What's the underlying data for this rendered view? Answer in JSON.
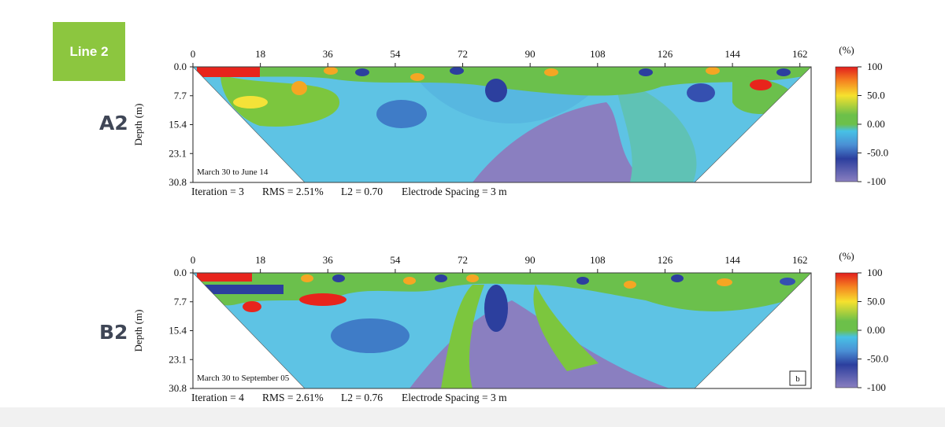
{
  "line_badge": "Line 2",
  "colors": {
    "badge": "#8cc63f",
    "panel_label": "#3f4656"
  },
  "chart_data": [
    {
      "type": "heatmap",
      "panel": "A2",
      "xticks": [
        0,
        18,
        36,
        54,
        72,
        90,
        108,
        126,
        144,
        162
      ],
      "yticks": [
        "0.0",
        "7.7",
        "15.4",
        "23.1",
        "30.8"
      ],
      "xlim": [
        0,
        165
      ],
      "ylim": [
        0,
        30.8
      ],
      "ylabel": "Depth (m)",
      "annotation": "March 30 to June 14",
      "footer": [
        "Iteration = 3",
        "RMS = 2.51%",
        "L2 = 0.70",
        "Electrode Spacing = 3 m"
      ],
      "colorbar": {
        "unit": "(%)",
        "ticks": [
          "100",
          "50.0",
          "0.00",
          "-50.0",
          "-100"
        ],
        "range": [
          -100,
          100
        ]
      }
    },
    {
      "type": "heatmap",
      "panel": "B2",
      "xticks": [
        0,
        18,
        36,
        54,
        72,
        90,
        108,
        126,
        144,
        162
      ],
      "yticks": [
        "0.0",
        "7.7",
        "15.4",
        "23.1",
        "30.8"
      ],
      "xlim": [
        0,
        165
      ],
      "ylim": [
        0,
        30.8
      ],
      "ylabel": "Depth (m)",
      "annotation": "March 30 to September 05",
      "corner_label": "b",
      "footer": [
        "Iteration = 4",
        "RMS = 2.61%",
        "L2 = 0.76",
        "Electrode Spacing = 3 m"
      ],
      "colorbar": {
        "unit": "(%)",
        "ticks": [
          "100",
          "50.0",
          "0.00",
          "-50.0",
          "-100"
        ],
        "range": [
          -100,
          100
        ]
      }
    }
  ]
}
